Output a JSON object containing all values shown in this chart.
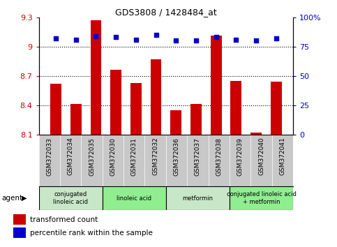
{
  "title": "GDS3808 / 1428484_at",
  "samples": [
    "GSM372033",
    "GSM372034",
    "GSM372035",
    "GSM372030",
    "GSM372031",
    "GSM372032",
    "GSM372036",
    "GSM372037",
    "GSM372038",
    "GSM372039",
    "GSM372040",
    "GSM372041"
  ],
  "bar_values": [
    8.62,
    8.41,
    9.27,
    8.76,
    8.63,
    8.87,
    8.35,
    8.41,
    9.11,
    8.65,
    8.12,
    8.64
  ],
  "dot_values": [
    82,
    81,
    84,
    83,
    81,
    85,
    80,
    80,
    83,
    81,
    80,
    82
  ],
  "bar_color": "#cc0000",
  "dot_color": "#0000cc",
  "bar_base": 8.1,
  "ylim_left": [
    8.1,
    9.3
  ],
  "ylim_right": [
    0,
    100
  ],
  "yticks_left": [
    8.1,
    8.4,
    8.7,
    9.0,
    9.3
  ],
  "yticks_right": [
    0,
    25,
    50,
    75,
    100
  ],
  "ytick_labels_left": [
    "8.1",
    "8.4",
    "8.7",
    "9",
    "9.3"
  ],
  "ytick_labels_right": [
    "0",
    "25",
    "50",
    "75",
    "100%"
  ],
  "hlines": [
    9.0,
    8.7,
    8.4
  ],
  "agent_groups": [
    {
      "label": "conjugated\nlinoleic acid",
      "start": 0,
      "end": 3,
      "color": "#c8e6c8"
    },
    {
      "label": "linoleic acid",
      "start": 3,
      "end": 6,
      "color": "#90ee90"
    },
    {
      "label": "metformin",
      "start": 6,
      "end": 9,
      "color": "#c8e6c8"
    },
    {
      "label": "conjugated linoleic acid\n+ metformin",
      "start": 9,
      "end": 12,
      "color": "#90ee90"
    }
  ],
  "legend_items": [
    {
      "label": "transformed count",
      "color": "#cc0000"
    },
    {
      "label": "percentile rank within the sample",
      "color": "#0000cc"
    }
  ],
  "agent_label": "agent",
  "left_color": "#cc0000",
  "right_color": "#0000cc",
  "tick_bg_color": "#c8c8c8",
  "fig_width": 4.83,
  "fig_height": 3.54,
  "bar_width": 0.55
}
